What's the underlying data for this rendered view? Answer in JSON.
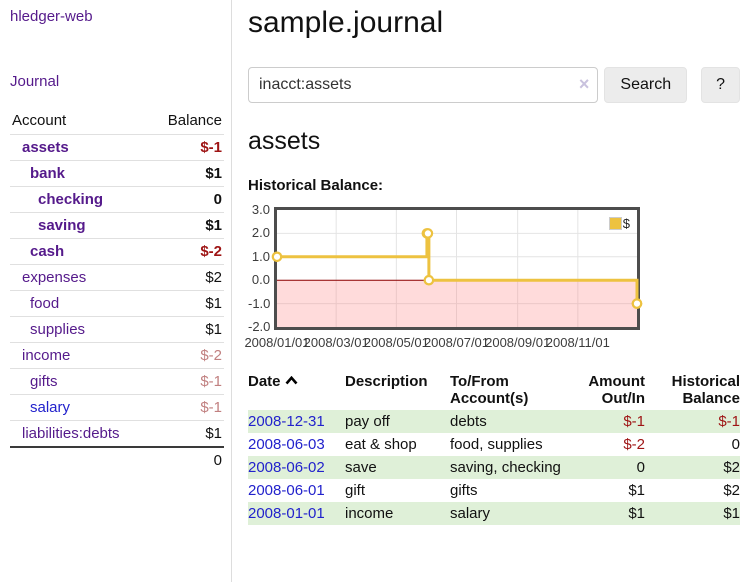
{
  "app": {
    "brand": "hledger-web",
    "nav_journal": "Journal"
  },
  "sidebar": {
    "columns": {
      "account": "Account",
      "balance": "Balance"
    },
    "accounts": [
      {
        "name": "assets",
        "depth": 1,
        "balance": "$-1",
        "bold": true,
        "neg": "strong"
      },
      {
        "name": "bank",
        "depth": 2,
        "balance": "$1",
        "bold": true,
        "neg": "none"
      },
      {
        "name": "checking",
        "depth": 3,
        "balance": "0",
        "bold": true,
        "neg": "none"
      },
      {
        "name": "saving",
        "depth": 3,
        "balance": "$1",
        "bold": true,
        "neg": "none"
      },
      {
        "name": "cash",
        "depth": 2,
        "balance": "$-2",
        "bold": true,
        "neg": "strong"
      },
      {
        "name": "expenses",
        "depth": 1,
        "balance": "$2",
        "bold": false,
        "neg": "none"
      },
      {
        "name": "food",
        "depth": 2,
        "balance": "$1",
        "bold": false,
        "neg": "none"
      },
      {
        "name": "supplies",
        "depth": 2,
        "balance": "$1",
        "bold": false,
        "neg": "none"
      },
      {
        "name": "income",
        "depth": 1,
        "balance": "$-2",
        "bold": false,
        "neg": "faded"
      },
      {
        "name": "gifts",
        "depth": 2,
        "balance": "$-1",
        "bold": false,
        "neg": "faded"
      },
      {
        "name": "salary",
        "depth": 2,
        "balance": "$-1",
        "bold": false,
        "neg": "faded",
        "link_color": "blue"
      },
      {
        "name": "liabilities:debts",
        "depth": 1,
        "balance": "$1",
        "bold": false,
        "neg": "none"
      }
    ],
    "total": "0"
  },
  "header": {
    "title": "sample.journal"
  },
  "search": {
    "value": "inacct:assets",
    "clear_icon": "×",
    "button_label": "Search",
    "help_label": "?"
  },
  "account_page": {
    "heading": "assets",
    "chart_label": "Historical Balance:"
  },
  "chart_data": {
    "type": "line",
    "step": true,
    "title": "Historical Balance:",
    "series": [
      {
        "name": "$",
        "color": "#edc240",
        "points": [
          [
            "2008-01-01",
            1
          ],
          [
            "2008-06-01",
            2
          ],
          [
            "2008-06-02",
            2
          ],
          [
            "2008-06-03",
            0
          ],
          [
            "2008-12-31",
            -1
          ]
        ]
      }
    ],
    "ylim": [
      -2,
      3
    ],
    "yticks": [
      "3.0",
      "2.0",
      "1.0",
      "0.0",
      "-1.0",
      "-2.0"
    ],
    "xticks": [
      "2008/01/01",
      "2008/03/01",
      "2008/05/01",
      "2008/07/01",
      "2008/09/01",
      "2008/11/01"
    ],
    "x_range": [
      "2008-01-01",
      "2008-12-31"
    ],
    "grid": true,
    "legend_position": "top-right",
    "negative_region_color": "rgba(255,110,110,0.25)",
    "zero_line_color": "#8b0000"
  },
  "register": {
    "headers": {
      "date": "Date",
      "description": "Description",
      "tofrom": "To/From Account(s)",
      "amount": "Amount Out/In",
      "balance": "Historical Balance"
    },
    "rows": [
      {
        "date": "2008-12-31",
        "description": "pay off",
        "tofrom": "debts",
        "amount": "$-1",
        "amount_neg": true,
        "balance": "$-1",
        "balance_neg": true,
        "stripe": true
      },
      {
        "date": "2008-06-03",
        "description": "eat & shop",
        "tofrom": "food, supplies",
        "amount": "$-2",
        "amount_neg": true,
        "balance": "0",
        "balance_neg": false,
        "stripe": false
      },
      {
        "date": "2008-06-02",
        "description": "save",
        "tofrom": "saving, checking",
        "amount": "0",
        "amount_neg": false,
        "balance": "$2",
        "balance_neg": false,
        "stripe": true
      },
      {
        "date": "2008-06-01",
        "description": "gift",
        "tofrom": "gifts",
        "amount": "$1",
        "amount_neg": false,
        "balance": "$2",
        "balance_neg": false,
        "stripe": false
      },
      {
        "date": "2008-01-01",
        "description": "income",
        "tofrom": "salary",
        "amount": "$1",
        "amount_neg": false,
        "balance": "$1",
        "balance_neg": false,
        "stripe": true
      }
    ]
  },
  "colors": {
    "link_purple": "#551A8B",
    "link_blue": "#2222cc",
    "negative_strong": "#9e1414",
    "negative_faded": "#c18080",
    "stripe_green": "#dff0d8",
    "series_gold": "#edc240"
  }
}
